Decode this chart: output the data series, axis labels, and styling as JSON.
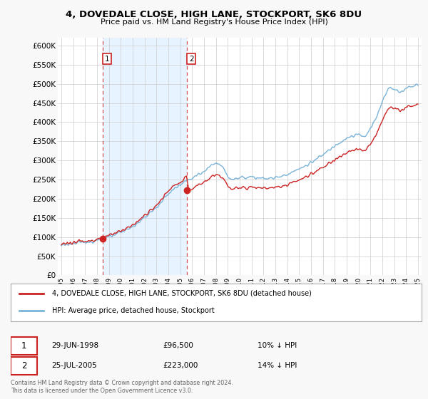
{
  "title": "4, DOVEDALE CLOSE, HIGH LANE, STOCKPORT, SK6 8DU",
  "subtitle": "Price paid vs. HM Land Registry's House Price Index (HPI)",
  "yticks": [
    0,
    50000,
    100000,
    150000,
    200000,
    250000,
    300000,
    350000,
    400000,
    450000,
    500000,
    550000,
    600000
  ],
  "legend_line1": "4, DOVEDALE CLOSE, HIGH LANE, STOCKPORT, SK6 8DU (detached house)",
  "legend_line2": "HPI: Average price, detached house, Stockport",
  "sale1_date": "29-JUN-1998",
  "sale1_price": "£96,500",
  "sale1_hpi": "10% ↓ HPI",
  "sale2_date": "25-JUL-2005",
  "sale2_price": "£223,000",
  "sale2_hpi": "14% ↓ HPI",
  "footer": "Contains HM Land Registry data © Crown copyright and database right 2024.\nThis data is licensed under the Open Government Licence v3.0.",
  "hpi_color": "#7ab4d8",
  "sale_color": "#cc2222",
  "background_color": "#f8f8f8",
  "plot_bg_color": "#ffffff",
  "highlight_bg_color": "#ddeeff",
  "grid_color": "#cccccc",
  "sale1_year": 1998.5,
  "sale1_val": 96500,
  "sale2_year": 2005.58,
  "sale2_val": 223000
}
